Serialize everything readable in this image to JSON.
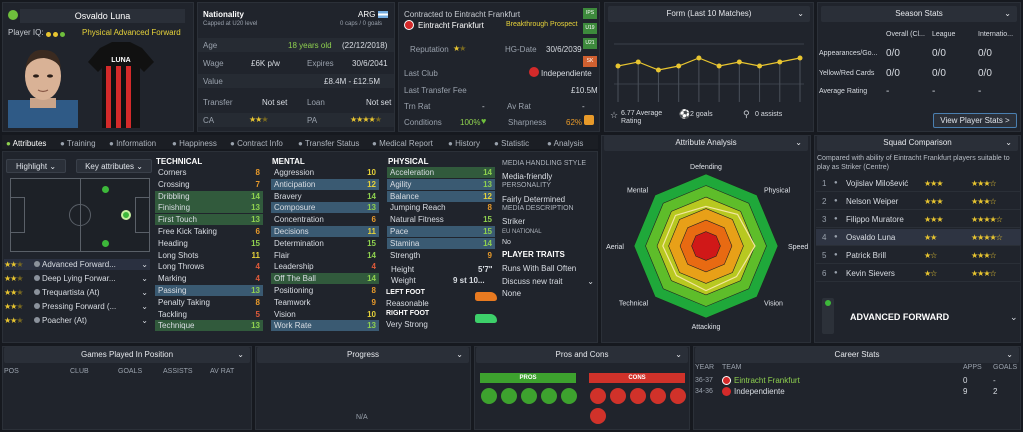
{
  "player": {
    "name": "Osvaldo Luna",
    "iq_label": "Player IQ:",
    "role": "Physical Advanced Forward",
    "kit_text": "LUNA"
  },
  "nationality": {
    "label": "Nationality",
    "country": "ARG",
    "sub": "Capped at U20 level",
    "caps": "0 caps / 0 goals"
  },
  "details": {
    "age_label": "Age",
    "age": "18 years old",
    "dob": "(22/12/2018)",
    "wage_label": "Wage",
    "wage": "£6K p/w",
    "expires_label": "Expires",
    "expires": "30/6/2041",
    "value_label": "Value",
    "value": "£8.4M - £12.5M",
    "transfer_label": "Transfer",
    "transfer": "Not set",
    "loan_label": "Loan",
    "loan": "Not set",
    "ca_label": "CA",
    "pa_label": "PA"
  },
  "contract": {
    "title": "Contracted to Eintracht Frankfurt",
    "club": "Eintracht Frankfurt",
    "tag": "Breakthrough Prospect",
    "side_badges": [
      "IPS",
      "U19",
      "U21",
      "SK"
    ],
    "reputation_label": "Reputation",
    "hg_label": "HG-Date",
    "hg_date": "30/6/2039",
    "last_club_label": "Last Club",
    "last_club": "Independiente",
    "fee_label": "Last Transfer Fee",
    "fee": "£10.5M",
    "trn_label": "Trn Rat",
    "trn": "-",
    "av_label": "Av Rat",
    "av": "-",
    "conditions_label": "Conditions",
    "conditions": "100%",
    "sharpness_label": "Sharpness",
    "sharpness": "62%"
  },
  "form": {
    "title": "Form (Last 10 Matches)",
    "avg": "6.77 Average Rating",
    "goals": "2 goals",
    "assists": "0 assists",
    "ratings": [
      6.7,
      6.8,
      6.6,
      6.7,
      6.9,
      6.7,
      6.8,
      6.7,
      6.8,
      6.9
    ]
  },
  "season": {
    "title": "Season Stats",
    "cols": [
      "Overall (Cl...",
      "League",
      "Internatio..."
    ],
    "rows": [
      {
        "label": "Appearances/Go...",
        "vals": [
          "0/0",
          "0/0",
          "0/0"
        ]
      },
      {
        "label": "Yellow/Red Cards",
        "vals": [
          "0/0",
          "0/0",
          "0/0"
        ]
      },
      {
        "label": "Average Rating",
        "vals": [
          "-",
          "-",
          "-"
        ]
      }
    ],
    "button": "View Player Stats >"
  },
  "tabs": [
    "Attributes",
    "Training",
    "Information",
    "Happiness",
    "Contract Info",
    "Transfer Status",
    "Medical Report",
    "History",
    "Statistic",
    "Analysis"
  ],
  "left": {
    "highlight": "Highlight",
    "key_attrs": "Key attributes",
    "roles": [
      {
        "name": "Advanced Forward...",
        "stars": 2
      },
      {
        "name": "Deep Lying Forwar...",
        "stars": 2
      },
      {
        "name": "Trequartista (At)",
        "stars": 2
      },
      {
        "name": "Pressing Forward (...",
        "stars": 2
      },
      {
        "name": "Poacher (At)",
        "stars": 2
      }
    ]
  },
  "technical": {
    "title": "TECHNICAL",
    "items": [
      {
        "n": "Corners",
        "v": "8"
      },
      {
        "n": "Crossing",
        "v": "7"
      },
      {
        "n": "Dribbling",
        "v": "14"
      },
      {
        "n": "Finishing",
        "v": "13"
      },
      {
        "n": "First Touch",
        "v": "13"
      },
      {
        "n": "Free Kick Taking",
        "v": "6"
      },
      {
        "n": "Heading",
        "v": "15"
      },
      {
        "n": "Long Shots",
        "v": "11"
      },
      {
        "n": "Long Throws",
        "v": "4"
      },
      {
        "n": "Marking",
        "v": "4"
      },
      {
        "n": "Passing",
        "v": "13"
      },
      {
        "n": "Penalty Taking",
        "v": "8"
      },
      {
        "n": "Tackling",
        "v": "5"
      },
      {
        "n": "Technique",
        "v": "13"
      }
    ]
  },
  "mental": {
    "title": "MENTAL",
    "items": [
      {
        "n": "Aggression",
        "v": "10"
      },
      {
        "n": "Anticipation",
        "v": "12"
      },
      {
        "n": "Bravery",
        "v": "14"
      },
      {
        "n": "Composure",
        "v": "13"
      },
      {
        "n": "Concentration",
        "v": "6"
      },
      {
        "n": "Decisions",
        "v": "11"
      },
      {
        "n": "Determination",
        "v": "15"
      },
      {
        "n": "Flair",
        "v": "14"
      },
      {
        "n": "Leadership",
        "v": "4"
      },
      {
        "n": "Off The Ball",
        "v": "14"
      },
      {
        "n": "Positioning",
        "v": "8"
      },
      {
        "n": "Teamwork",
        "v": "9"
      },
      {
        "n": "Vision",
        "v": "10"
      },
      {
        "n": "Work Rate",
        "v": "13"
      }
    ]
  },
  "physical": {
    "title": "PHYSICAL",
    "items": [
      {
        "n": "Acceleration",
        "v": "14"
      },
      {
        "n": "Agility",
        "v": "13"
      },
      {
        "n": "Balance",
        "v": "12"
      },
      {
        "n": "Jumping Reach",
        "v": "8"
      },
      {
        "n": "Natural Fitness",
        "v": "15"
      },
      {
        "n": "Pace",
        "v": "15"
      },
      {
        "n": "Stamina",
        "v": "14"
      },
      {
        "n": "Strength",
        "v": "9"
      }
    ],
    "height_label": "Height",
    "height": "5'7\"",
    "weight_label": "Weight",
    "weight": "9 st 10...",
    "left_foot_label": "LEFT FOOT",
    "left_foot": "Reasonable",
    "right_foot_label": "RIGHT FOOT",
    "right_foot": "Very Strong"
  },
  "media": {
    "style_label": "MEDIA HANDLING STYLE",
    "style": "Media-friendly",
    "personality_label": "PERSONALITY",
    "personality": "Fairly Determined",
    "desc_label": "MEDIA DESCRIPTION",
    "desc": "Striker",
    "eu_label": "EU NATIONAL",
    "eu": "No",
    "traits_label": "PLAYER TRAITS",
    "trait": "Runs With Ball Often",
    "discuss": "Discuss new trait",
    "none": "None"
  },
  "analysis": {
    "title": "Attribute Analysis",
    "axes": [
      "Defending",
      "Physical",
      "Speed",
      "Vision",
      "Attacking",
      "Technical",
      "Aerial",
      "Mental"
    ]
  },
  "squad": {
    "title": "Squad Comparison",
    "desc": "Compared with ability of Eintracht Frankfurt players suitable to play as Striker (Centre)",
    "players": [
      {
        "rank": "1",
        "name": "Vojislav Milošević",
        "ca": 3,
        "pa": 3.5
      },
      {
        "rank": "2",
        "name": "Nelson Weiper",
        "ca": 3,
        "pa": 3.5
      },
      {
        "rank": "3",
        "name": "Filippo Muratore",
        "ca": 3,
        "pa": 4.5
      },
      {
        "rank": "4",
        "name": "Osvaldo Luna",
        "ca": 2,
        "pa": 4.5
      },
      {
        "rank": "5",
        "name": "Patrick Brill",
        "ca": 1.5,
        "pa": 3.5
      },
      {
        "rank": "6",
        "name": "Kevin Sievers",
        "ca": 1.5,
        "pa": 3.5
      }
    ],
    "role": "ADVANCED FORWARD"
  },
  "bottom": {
    "games_title": "Games Played In Position",
    "games_cols": [
      "POS",
      "CLUB",
      "GOALS",
      "ASSISTS",
      "AV RAT"
    ],
    "progress_title": "Progress",
    "progress_value": "N/A",
    "pros_cons_title": "Pros and Cons",
    "pros_label": "PROS",
    "cons_label": "CONS",
    "career_title": "Career Stats",
    "career_cols": [
      "YEAR",
      "TEAM",
      "APPS",
      "GOALS"
    ],
    "career_rows": [
      {
        "year": "36-37",
        "team": "Eintracht Frankfurt",
        "apps": "0",
        "goals": "-"
      },
      {
        "year": "34-36",
        "team": "Independiente",
        "apps": "9",
        "goals": "2"
      }
    ]
  },
  "colors": {
    "accent": "#8fd14f",
    "star": "#e8c530",
    "highlight": "#3a5a72",
    "pros": "#3da22e",
    "cons": "#d0322a"
  }
}
